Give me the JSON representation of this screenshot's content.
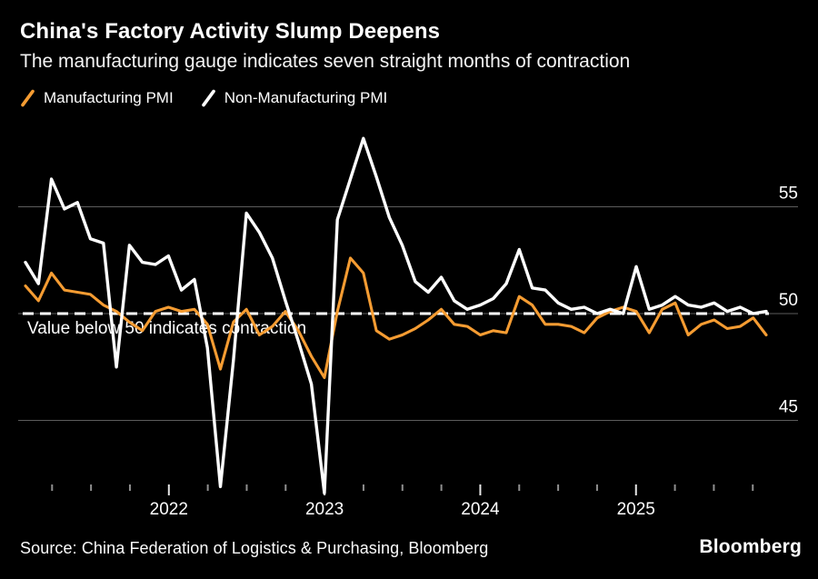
{
  "header": {
    "title": "China's Factory Activity Slump Deepens",
    "subtitle": "The manufacturing gauge indicates seven straight months of contraction"
  },
  "legend": [
    {
      "label": "Manufacturing PMI",
      "color": "#F59C32"
    },
    {
      "label": "Non-Manufacturing PMI",
      "color": "#FFFFFF"
    }
  ],
  "footer": {
    "source": "Source: China Federation of Logistics & Purchasing, Bloomberg",
    "brand": "Bloomberg"
  },
  "chart_data": {
    "type": "line",
    "title": "China's Factory Activity Slump Deepens",
    "subtitle": "The manufacturing gauge indicates seven straight months of contraction",
    "grid": "horizontal",
    "legend_position": "top-left",
    "ylim": [
      41,
      59
    ],
    "y_axis": {
      "ticks": [
        55,
        50,
        45
      ],
      "tick_labels": [
        "55",
        "50",
        "45"
      ]
    },
    "x_axis": {
      "tick_labels": [
        "2022",
        "2023",
        "2024",
        "2025"
      ],
      "minor_tick_interval": "quarterly"
    },
    "reference_line": {
      "value": 50,
      "label": "Value below 50 indicates contraction"
    },
    "x": [
      "2021-01",
      "2021-02",
      "2021-03",
      "2021-04",
      "2021-05",
      "2021-06",
      "2021-07",
      "2021-08",
      "2021-09",
      "2021-10",
      "2021-11",
      "2021-12",
      "2022-01",
      "2022-02",
      "2022-03",
      "2022-04",
      "2022-05",
      "2022-06",
      "2022-07",
      "2022-08",
      "2022-09",
      "2022-10",
      "2022-11",
      "2022-12",
      "2023-01",
      "2023-02",
      "2023-03",
      "2023-04",
      "2023-05",
      "2023-06",
      "2023-07",
      "2023-08",
      "2023-09",
      "2023-10",
      "2023-11",
      "2023-12",
      "2024-01",
      "2024-02",
      "2024-03",
      "2024-04",
      "2024-05",
      "2024-06",
      "2024-07",
      "2024-08",
      "2024-09",
      "2024-10",
      "2024-11",
      "2024-12",
      "2025-01",
      "2025-02",
      "2025-03",
      "2025-04",
      "2025-05",
      "2025-06",
      "2025-07",
      "2025-08",
      "2025-09",
      "2025-10"
    ],
    "series": [
      {
        "name": "Manufacturing PMI",
        "color": "#F59C32",
        "values": [
          51.3,
          50.6,
          51.9,
          51.1,
          51.0,
          50.9,
          50.4,
          50.1,
          49.6,
          49.2,
          50.1,
          50.3,
          50.1,
          50.2,
          49.5,
          47.4,
          49.6,
          50.2,
          49.0,
          49.4,
          50.1,
          49.2,
          48.0,
          47.0,
          50.1,
          52.6,
          51.9,
          49.2,
          48.8,
          49.0,
          49.3,
          49.7,
          50.2,
          49.5,
          49.4,
          49.0,
          49.2,
          49.1,
          50.8,
          50.4,
          49.5,
          49.5,
          49.4,
          49.1,
          49.8,
          50.1,
          50.3,
          50.1,
          49.1,
          50.2,
          50.5,
          49.0,
          49.5,
          49.7,
          49.3,
          49.4,
          49.8,
          49.0
        ]
      },
      {
        "name": "Non-Manufacturing PMI",
        "color": "#FFFFFF",
        "values": [
          52.4,
          51.4,
          56.3,
          54.9,
          55.2,
          53.5,
          53.3,
          47.5,
          53.2,
          52.4,
          52.3,
          52.7,
          51.1,
          51.6,
          48.4,
          41.9,
          47.8,
          54.7,
          53.8,
          52.6,
          50.6,
          48.7,
          46.7,
          41.6,
          54.4,
          56.3,
          58.2,
          56.4,
          54.5,
          53.2,
          51.5,
          51.0,
          51.7,
          50.6,
          50.2,
          50.4,
          50.7,
          51.4,
          53.0,
          51.2,
          51.1,
          50.5,
          50.2,
          50.3,
          50.0,
          50.2,
          50.0,
          52.2,
          50.2,
          50.4,
          50.8,
          50.4,
          50.3,
          50.5,
          50.1,
          50.3,
          50.0,
          50.1
        ]
      }
    ]
  }
}
